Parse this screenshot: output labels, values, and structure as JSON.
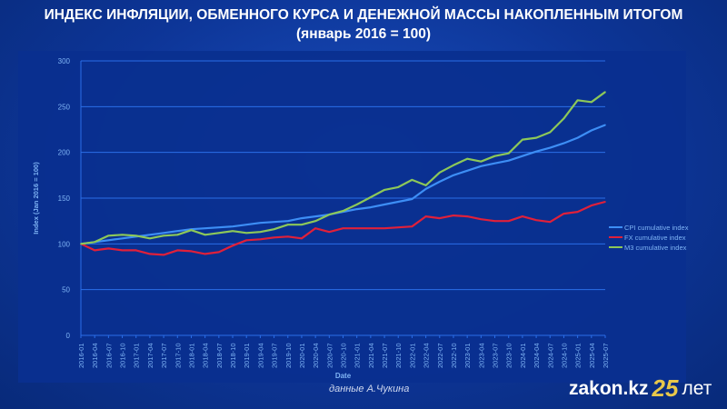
{
  "title": {
    "line1": "ИНДЕКС ИНФЛЯЦИИ, ОБМЕННОГО КУРСА И ДЕНЕЖНОЙ МАССЫ НАКОПЛЕННЫМ ИТОГОМ",
    "line2": "(январь 2016 = 100)"
  },
  "credit": "данные А.Чукина",
  "logo": {
    "site": "zakon.kz",
    "number": "25",
    "suffix": "лет"
  },
  "chart_data": {
    "type": "line",
    "title": "ИНДЕКС ИНФЛЯЦИИ, ОБМЕННОГО КУРСА И ДЕНЕЖНОЙ МАССЫ НАКОПЛЕННЫМ ИТОГОМ (январь 2016 = 100)",
    "xlabel": "Date",
    "ylabel": "Index (Jan 2016 = 100)",
    "ylim": [
      0,
      300
    ],
    "yticks": [
      0,
      50,
      100,
      150,
      200,
      250,
      300
    ],
    "grid": true,
    "legend_position": "right",
    "x": [
      "2016-01",
      "2016-04",
      "2016-07",
      "2016-10",
      "2017-01",
      "2017-04",
      "2017-07",
      "2017-10",
      "2018-01",
      "2018-04",
      "2018-07",
      "2018-10",
      "2019-01",
      "2019-04",
      "2019-07",
      "2019-10",
      "2020-01",
      "2020-04",
      "2020-07",
      "2020-10",
      "2021-01",
      "2021-04",
      "2021-07",
      "2021-10",
      "2022-01",
      "2022-04",
      "2022-07",
      "2022-10",
      "2023-01",
      "2023-04",
      "2023-07",
      "2023-10",
      "2024-01",
      "2024-04",
      "2024-07",
      "2024-10",
      "2025-01",
      "2025-04",
      "2025-07"
    ],
    "series": [
      {
        "name": "CPI cumulative index",
        "color": "#3d8ef5",
        "values": [
          100,
          102,
          104,
          106,
          108,
          110,
          112,
          114,
          116,
          117,
          118,
          119,
          121,
          123,
          124,
          125,
          128,
          130,
          132,
          135,
          138,
          140,
          143,
          146,
          149,
          160,
          168,
          175,
          180,
          185,
          188,
          191,
          196,
          201,
          205,
          210,
          216,
          224,
          230
        ]
      },
      {
        "name": "FX cumulative index",
        "color": "#e0203a",
        "values": [
          100,
          93,
          95,
          93,
          93,
          89,
          88,
          93,
          92,
          89,
          91,
          98,
          104,
          105,
          107,
          108,
          106,
          117,
          113,
          117,
          117,
          117,
          117,
          118,
          119,
          130,
          128,
          131,
          130,
          127,
          125,
          125,
          130,
          126,
          124,
          133,
          135,
          142,
          146
        ]
      },
      {
        "name": "M3 cumulative index",
        "color": "#8dc859",
        "values": [
          100,
          102,
          109,
          110,
          109,
          106,
          109,
          110,
          115,
          110,
          112,
          114,
          112,
          113,
          116,
          121,
          121,
          125,
          132,
          136,
          143,
          151,
          159,
          162,
          170,
          164,
          178,
          186,
          193,
          190,
          196,
          199,
          214,
          216,
          222,
          237,
          257,
          255,
          266
        ]
      }
    ]
  }
}
